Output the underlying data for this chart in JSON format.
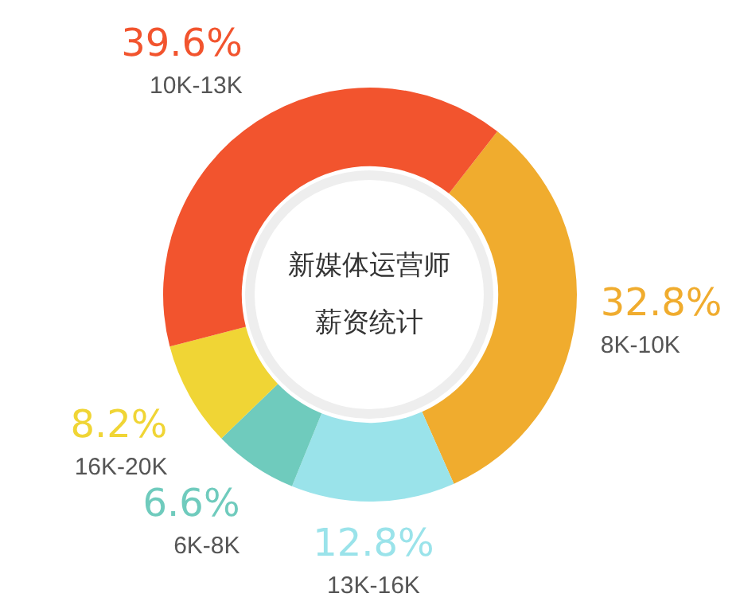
{
  "chart_data": {
    "type": "donut",
    "title": "新媒体运营师",
    "subtitle": "薪资统计",
    "categories": [
      "8K-10K",
      "13K-16K",
      "6K-8K",
      "16K-20K",
      "10K-13K"
    ],
    "values": [
      32.8,
      12.8,
      6.6,
      8.2,
      39.6
    ],
    "colors": [
      "#f0ac2e",
      "#9ae3ea",
      "#6fcbbd",
      "#f0d535",
      "#f2542e"
    ],
    "value_labels": [
      "32.8%",
      "12.8%",
      "6.6%",
      "8.2%",
      "39.6%"
    ],
    "legend": false
  }
}
